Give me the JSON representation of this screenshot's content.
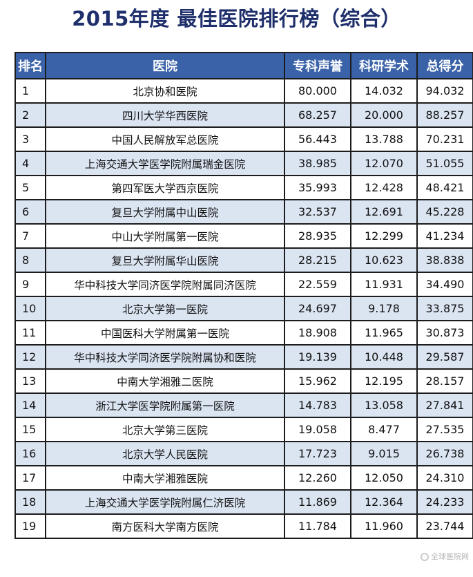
{
  "title": "2015年度 最佳医院排行榜（综合）",
  "table": {
    "headers": {
      "rank": "排名",
      "hospital": "医院",
      "specialty_reputation": "专科声誉",
      "research": "科研学术",
      "total": "总得分"
    },
    "rows": [
      {
        "rank": "1",
        "hospital": "北京协和医院",
        "specialty_reputation": "80.000",
        "research": "14.032",
        "total": "94.032"
      },
      {
        "rank": "2",
        "hospital": "四川大学华西医院",
        "specialty_reputation": "68.257",
        "research": "20.000",
        "total": "88.257"
      },
      {
        "rank": "3",
        "hospital": "中国人民解放军总医院",
        "specialty_reputation": "56.443",
        "research": "13.788",
        "total": "70.231"
      },
      {
        "rank": "4",
        "hospital": "上海交通大学医学院附属瑞金医院",
        "specialty_reputation": "38.985",
        "research": "12.070",
        "total": "51.055"
      },
      {
        "rank": "5",
        "hospital": "第四军医大学西京医院",
        "specialty_reputation": "35.993",
        "research": "12.428",
        "total": "48.421"
      },
      {
        "rank": "6",
        "hospital": "复旦大学附属中山医院",
        "specialty_reputation": "32.537",
        "research": "12.691",
        "total": "45.228"
      },
      {
        "rank": "7",
        "hospital": "中山大学附属第一医院",
        "specialty_reputation": "28.935",
        "research": "12.299",
        "total": "41.234"
      },
      {
        "rank": "8",
        "hospital": "复旦大学附属华山医院",
        "specialty_reputation": "28.215",
        "research": "10.623",
        "total": "38.838"
      },
      {
        "rank": "9",
        "hospital": "华中科技大学同济医学院附属同济医院",
        "specialty_reputation": "22.559",
        "research": "11.931",
        "total": "34.490"
      },
      {
        "rank": "10",
        "hospital": "北京大学第一医院",
        "specialty_reputation": "24.697",
        "research": "9.178",
        "total": "33.875"
      },
      {
        "rank": "11",
        "hospital": "中国医科大学附属第一医院",
        "specialty_reputation": "18.908",
        "research": "11.965",
        "total": "30.873"
      },
      {
        "rank": "12",
        "hospital": "华中科技大学同济医学院附属协和医院",
        "specialty_reputation": "19.139",
        "research": "10.448",
        "total": "29.587"
      },
      {
        "rank": "13",
        "hospital": "中南大学湘雅二医院",
        "specialty_reputation": "15.962",
        "research": "12.195",
        "total": "28.157"
      },
      {
        "rank": "14",
        "hospital": "浙江大学医学院附属第一医院",
        "specialty_reputation": "14.783",
        "research": "13.058",
        "total": "27.841"
      },
      {
        "rank": "15",
        "hospital": "北京大学第三医院",
        "specialty_reputation": "19.058",
        "research": "8.477",
        "total": "27.535"
      },
      {
        "rank": "16",
        "hospital": "北京大学人民医院",
        "specialty_reputation": "17.723",
        "research": "9.015",
        "total": "26.738"
      },
      {
        "rank": "17",
        "hospital": "中南大学湘雅医院",
        "specialty_reputation": "12.260",
        "research": "12.050",
        "total": "24.310"
      },
      {
        "rank": "18",
        "hospital": "上海交通大学医学院附属仁济医院",
        "specialty_reputation": "11.869",
        "research": "12.364",
        "total": "24.233"
      },
      {
        "rank": "19",
        "hospital": "南方医科大学南方医院",
        "specialty_reputation": "11.784",
        "research": "11.960",
        "total": "23.744"
      }
    ]
  },
  "watermark": "全球医院网",
  "colors": {
    "title": "#1e2f6b",
    "header_bg": "#3a62a8",
    "row_even_bg": "#dbe5f2",
    "row_odd_bg": "#ffffff"
  }
}
